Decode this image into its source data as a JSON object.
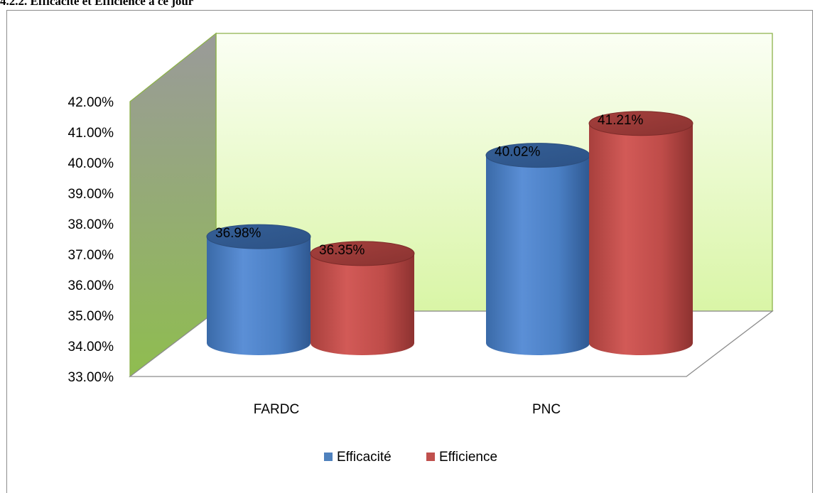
{
  "page": {
    "section_heading": "4.2.2. Efficacité et Efficience à ce jour"
  },
  "chart_data": {
    "type": "bar",
    "style": "3d-cylinder",
    "categories": [
      "FARDC",
      "PNC"
    ],
    "series": [
      {
        "name": "Efficacité",
        "color": "#4f81bd",
        "values": [
          0.3698,
          0.4002
        ],
        "labels": [
          "36.98%",
          "40.02%"
        ]
      },
      {
        "name": "Efficience",
        "color": "#c0504d",
        "values": [
          0.3635,
          0.4121
        ],
        "labels": [
          "36.35%",
          "41.21%"
        ]
      }
    ],
    "yticks": [
      "33.00%",
      "34.00%",
      "35.00%",
      "36.00%",
      "37.00%",
      "38.00%",
      "39.00%",
      "40.00%",
      "41.00%",
      "42.00%"
    ],
    "ylim": [
      0.33,
      0.42
    ],
    "legend_position": "bottom",
    "grid": false,
    "back_wall_color": "#e6fac4"
  }
}
